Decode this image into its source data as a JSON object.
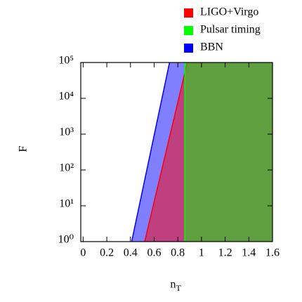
{
  "chart_data": {
    "type": "region",
    "x_label": "nT",
    "y_label": "F",
    "xlim": [
      -0.02,
      1.6
    ],
    "xticks": [
      0,
      0.2,
      0.4,
      0.6,
      0.8,
      1,
      1.2,
      1.4,
      1.6
    ],
    "ylim": [
      1,
      100000
    ],
    "log_y": true,
    "yticks": [
      {
        "value": 1,
        "label": "10⁰"
      },
      {
        "value": 10,
        "label": "10¹"
      },
      {
        "value": 100,
        "label": "10²"
      },
      {
        "value": 1000,
        "label": "10³"
      },
      {
        "value": 10000,
        "label": "10⁴"
      },
      {
        "value": 100000,
        "label": "10⁵"
      }
    ],
    "legend": "top-right",
    "fill_opacity": 0.5,
    "series": [
      {
        "name": "LIGO+Virgo",
        "color": "#ff0000",
        "x": [
          0.52,
          0.88
        ],
        "values": [
          1,
          100000
        ]
      },
      {
        "name": "Pulsar timing",
        "color": "#00ff00",
        "x": [
          0.86,
          0.86
        ],
        "values": [
          1,
          100000
        ]
      },
      {
        "name": "BBN",
        "color": "#0000ff",
        "x": [
          0.41,
          0.73
        ],
        "values": [
          1,
          100000
        ]
      }
    ]
  }
}
